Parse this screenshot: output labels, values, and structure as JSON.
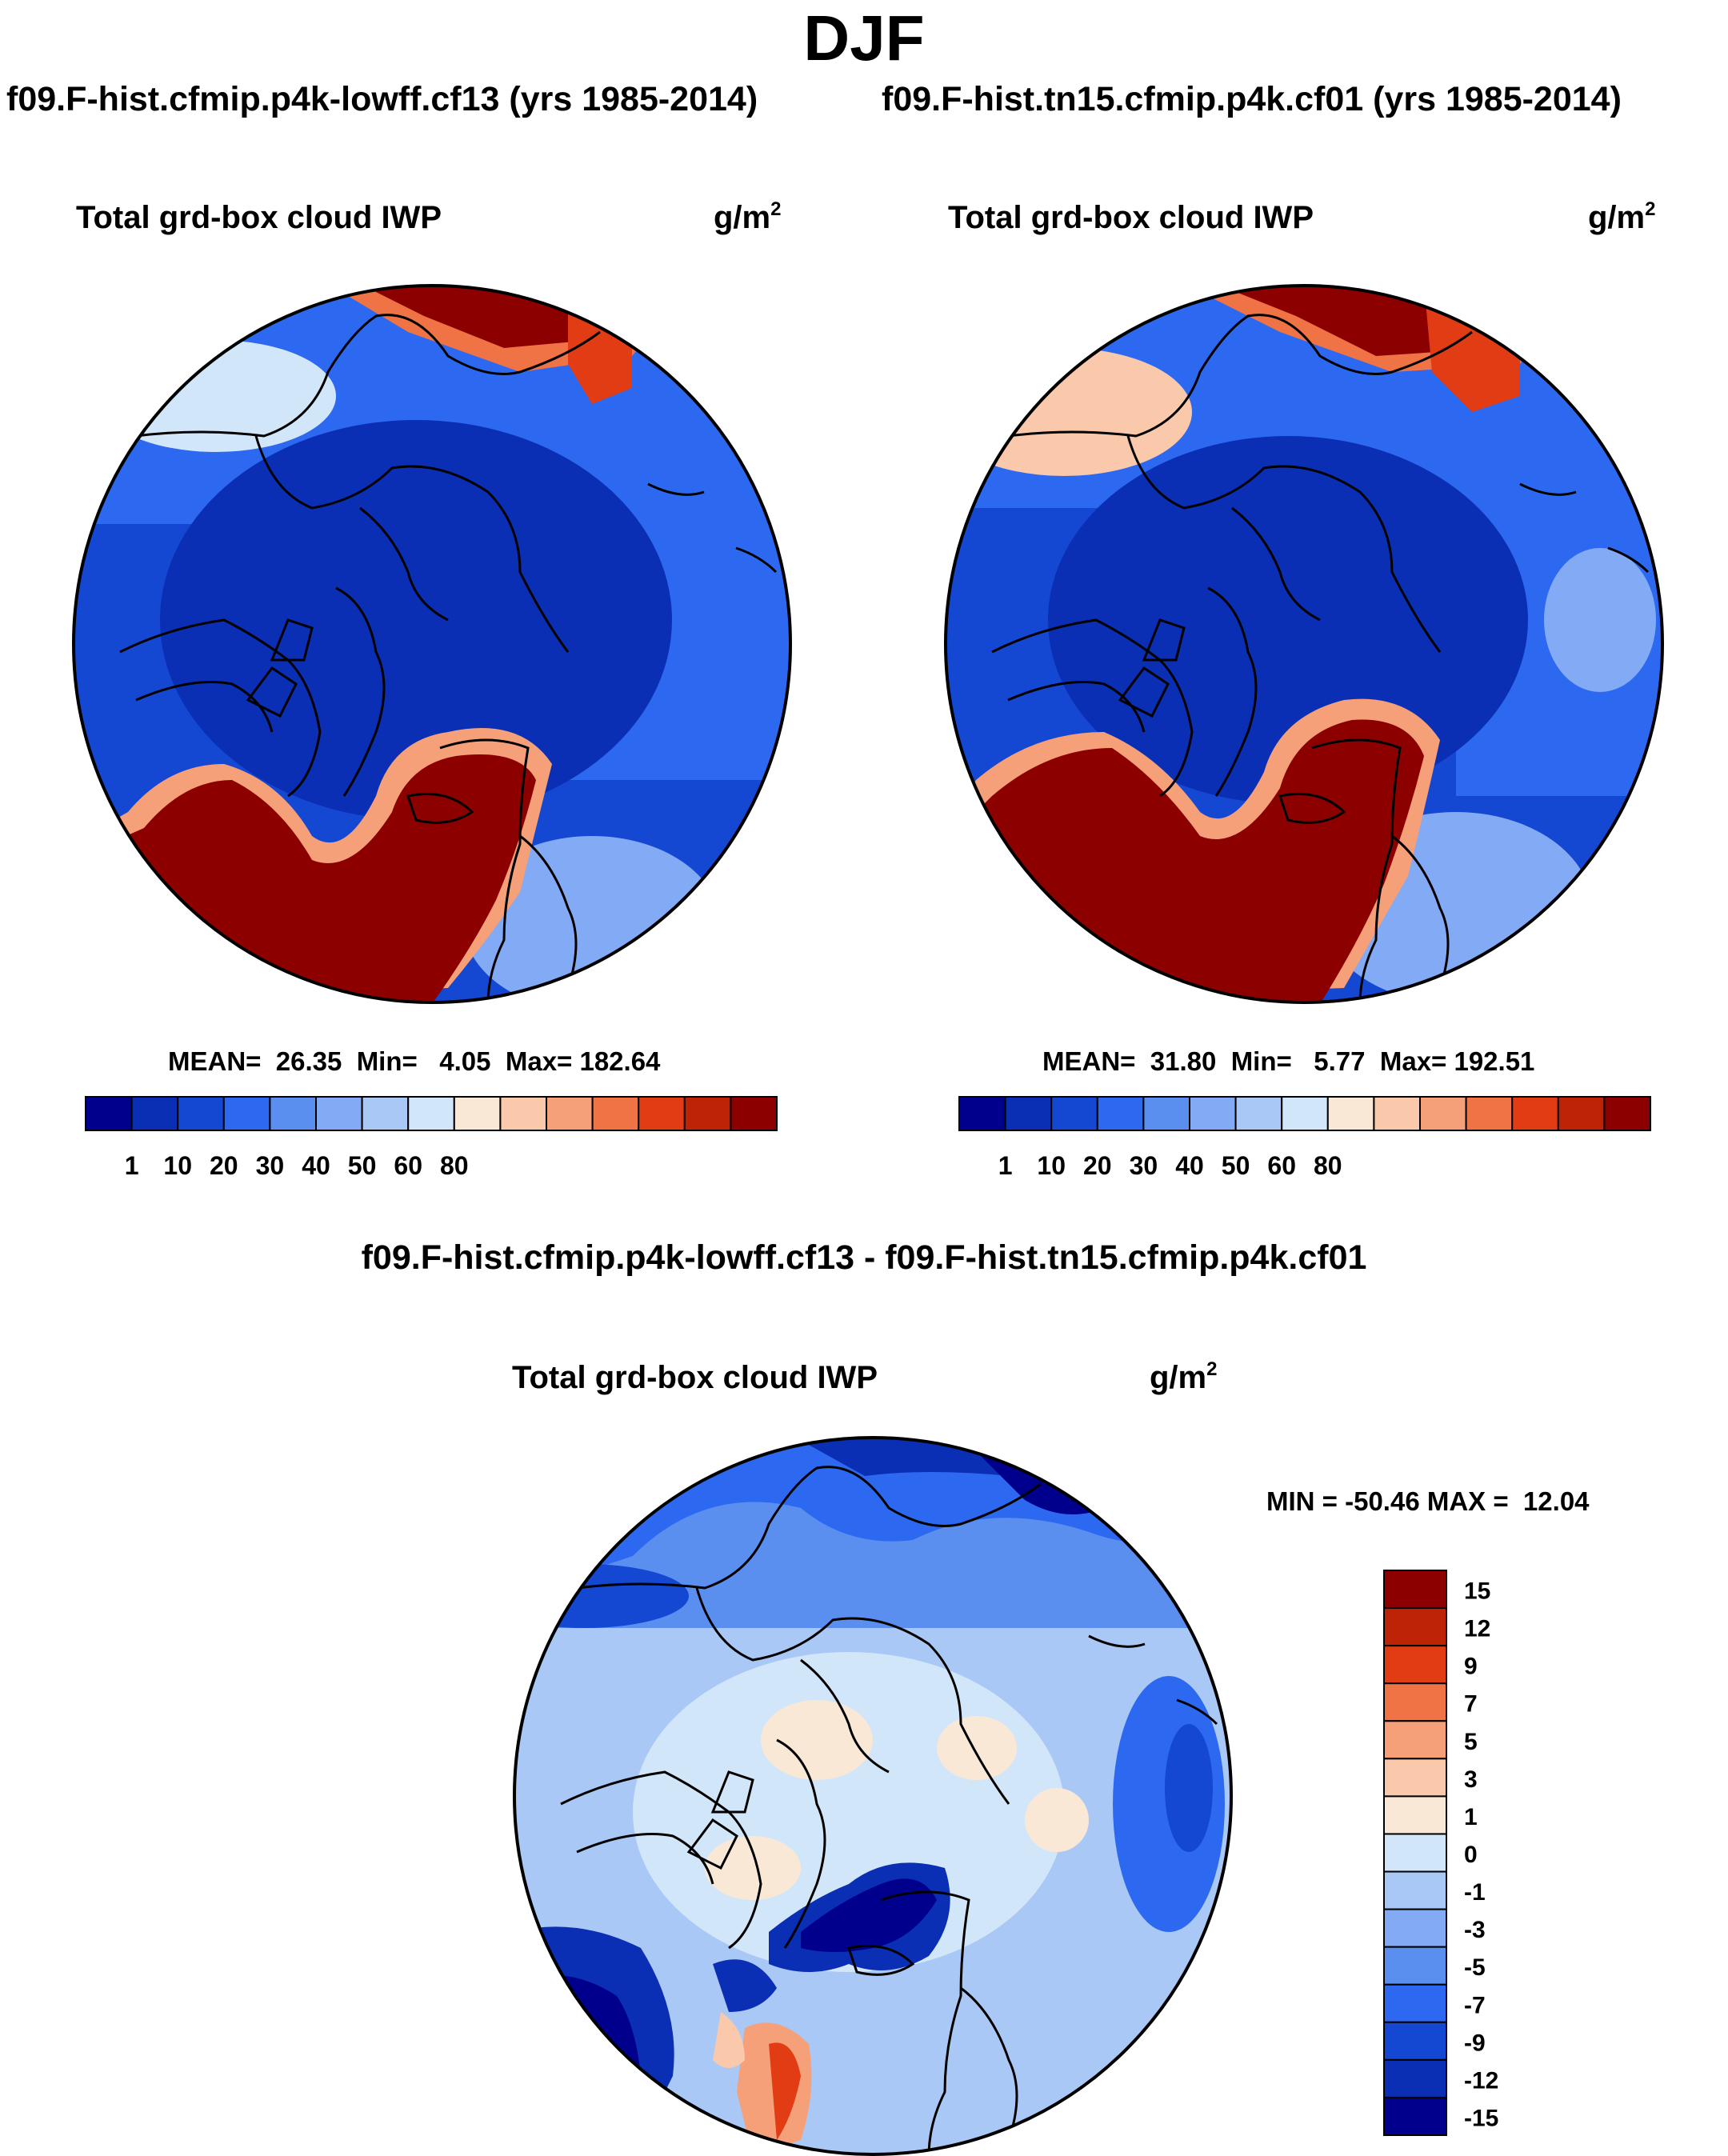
{
  "figure": {
    "season_title": "DJF",
    "panels": {
      "left": {
        "run_label": "f09.F-hist.cfmip.p4k-lowff.cf13 (yrs 1985-2014)",
        "plot_title": "Total grd-box cloud IWP",
        "units": "g/m",
        "units_exp": "2",
        "stats": "MEAN=  26.35  Min=   4.05  Max= 182.64"
      },
      "right": {
        "run_label": "f09.F-hist.tn15.cfmip.p4k.cf01 (yrs 1985-2014)",
        "plot_title": "Total grd-box cloud IWP",
        "units": "g/m",
        "units_exp": "2",
        "stats": "MEAN=  31.80  Min=   5.77  Max= 192.51"
      },
      "diff": {
        "title": "f09.F-hist.cfmip.p4k-lowff.cf13 - f09.F-hist.tn15.cfmip.p4k.cf01",
        "plot_title": "Total grd-box cloud IWP",
        "units": "g/m",
        "units_exp": "2",
        "stats": "MIN = -50.46 MAX =  12.04"
      }
    }
  },
  "chart_data": [
    {
      "type": "heatmap",
      "projection": "north-polar-stereographic",
      "title": "Total grd-box cloud IWP",
      "case": "f09.F-hist.cfmip.p4k-lowff.cf13",
      "years": "1985-2014",
      "units": "g/m2",
      "mean": 26.35,
      "min": 4.05,
      "max": 182.64,
      "colorbar": {
        "orientation": "horizontal",
        "tick_labels": [
          "1",
          "10",
          "20",
          "30",
          "40",
          "50",
          "60",
          "80"
        ],
        "colors": [
          "#00008c",
          "#0a2fb4",
          "#1447d2",
          "#2d69f0",
          "#5a8ff0",
          "#82aaf5",
          "#aac8f5",
          "#d2e6fa",
          "#fae8d7",
          "#fac8aa",
          "#f5a078",
          "#f07346",
          "#e13c14",
          "#be2305",
          "#8c0000"
        ]
      }
    },
    {
      "type": "heatmap",
      "projection": "north-polar-stereographic",
      "title": "Total grd-box cloud IWP",
      "case": "f09.F-hist.tn15.cfmip.p4k.cf01",
      "years": "1985-2014",
      "units": "g/m2",
      "mean": 31.8,
      "min": 5.77,
      "max": 192.51,
      "colorbar": {
        "orientation": "horizontal",
        "tick_labels": [
          "1",
          "10",
          "20",
          "30",
          "40",
          "50",
          "60",
          "80"
        ],
        "colors": [
          "#00008c",
          "#0a2fb4",
          "#1447d2",
          "#2d69f0",
          "#5a8ff0",
          "#82aaf5",
          "#aac8f5",
          "#d2e6fa",
          "#fae8d7",
          "#fac8aa",
          "#f5a078",
          "#f07346",
          "#e13c14",
          "#be2305",
          "#8c0000"
        ]
      }
    },
    {
      "type": "heatmap",
      "projection": "north-polar-stereographic",
      "title": "Total grd-box cloud IWP",
      "case": "f09.F-hist.cfmip.p4k-lowff.cf13 - f09.F-hist.tn15.cfmip.p4k.cf01",
      "units": "g/m2",
      "min": -50.46,
      "max": 12.04,
      "colorbar": {
        "orientation": "vertical",
        "tick_labels": [
          "15",
          "12",
          "9",
          "7",
          "5",
          "3",
          "1",
          "0",
          "-1",
          "-3",
          "-5",
          "-7",
          "-9",
          "-12",
          "-15"
        ],
        "colors": [
          "#8c0000",
          "#be2305",
          "#e13c14",
          "#f07346",
          "#f5a078",
          "#fac8aa",
          "#fae8d7",
          "#d2e6fa",
          "#aac8f5",
          "#82aaf5",
          "#5a8ff0",
          "#2d69f0",
          "#1447d2",
          "#0a2fb4",
          "#00008c"
        ]
      }
    }
  ]
}
